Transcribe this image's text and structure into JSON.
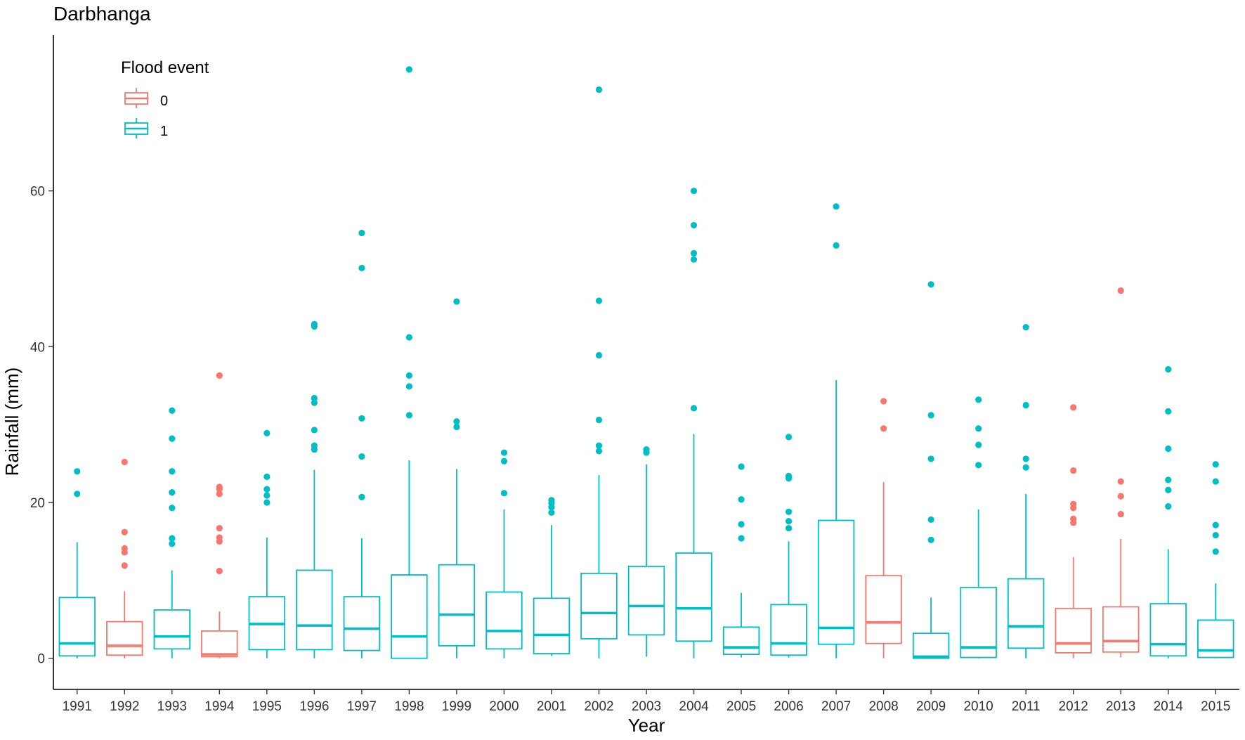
{
  "chart_data": {
    "type": "boxplot",
    "title": "Darbhanga",
    "xlabel": "Year",
    "ylabel": "Rainfall (mm)",
    "ylim": [
      -4,
      80
    ],
    "y_ticks": [
      0,
      20,
      40,
      60
    ],
    "grid": false,
    "legend": {
      "title": "Flood event",
      "placement": "top-left",
      "entries": [
        {
          "label": "0",
          "color": "#F8766D"
        },
        {
          "label": "1",
          "color": "#00BFC4"
        }
      ]
    },
    "colors": {
      "0": "#F8766D",
      "1": "#00BFC4"
    },
    "series": [
      {
        "year": "1991",
        "flood": "1",
        "lower": 0,
        "q1": 0.3,
        "median": 1.9,
        "q3": 7.8,
        "upper": 14.9,
        "outliers": [
          21.1,
          24.0
        ]
      },
      {
        "year": "1992",
        "flood": "0",
        "lower": 0,
        "q1": 0.4,
        "median": 1.6,
        "q3": 4.7,
        "upper": 8.6,
        "outliers": [
          11.9,
          13.6,
          14.1,
          16.2,
          25.2
        ]
      },
      {
        "year": "1993",
        "flood": "1",
        "lower": 0,
        "q1": 1.2,
        "median": 2.8,
        "q3": 6.2,
        "upper": 11.3,
        "outliers": [
          14.7,
          15.4,
          19.3,
          21.3,
          24.0,
          28.2,
          31.8
        ]
      },
      {
        "year": "1994",
        "flood": "0",
        "lower": 0,
        "q1": 0.2,
        "median": 0.5,
        "q3": 3.5,
        "upper": 6.0,
        "outliers": [
          11.2,
          15.0,
          15.5,
          16.7,
          21.1,
          21.7,
          22.0,
          36.3
        ]
      },
      {
        "year": "1995",
        "flood": "1",
        "lower": 0,
        "q1": 1.1,
        "median": 4.4,
        "q3": 7.9,
        "upper": 15.5,
        "outliers": [
          20.0,
          20.9,
          21.7,
          23.3,
          28.9
        ]
      },
      {
        "year": "1996",
        "flood": "1",
        "lower": 0,
        "q1": 1.1,
        "median": 4.2,
        "q3": 11.3,
        "upper": 24.2,
        "outliers": [
          26.8,
          27.3,
          29.3,
          32.8,
          33.4,
          42.6,
          42.9
        ]
      },
      {
        "year": "1997",
        "flood": "1",
        "lower": 0,
        "q1": 1.0,
        "median": 3.8,
        "q3": 7.9,
        "upper": 15.4,
        "outliers": [
          20.7,
          25.9,
          30.8,
          50.1,
          54.6
        ]
      },
      {
        "year": "1998",
        "flood": "1",
        "lower": 0,
        "q1": 0,
        "median": 2.8,
        "q3": 10.7,
        "upper": 25.4,
        "outliers": [
          31.2,
          34.9,
          36.3,
          41.2,
          75.6
        ]
      },
      {
        "year": "1999",
        "flood": "1",
        "lower": 0,
        "q1": 1.6,
        "median": 5.6,
        "q3": 12.0,
        "upper": 24.3,
        "outliers": [
          29.7,
          30.4,
          45.8
        ]
      },
      {
        "year": "2000",
        "flood": "1",
        "lower": 0,
        "q1": 1.2,
        "median": 3.5,
        "q3": 8.5,
        "upper": 19.1,
        "outliers": [
          21.2,
          25.3,
          26.4
        ]
      },
      {
        "year": "2001",
        "flood": "1",
        "lower": 0.3,
        "q1": 0.6,
        "median": 3.0,
        "q3": 7.7,
        "upper": 17.1,
        "outliers": [
          18.7,
          19.4,
          19.9,
          20.3
        ]
      },
      {
        "year": "2002",
        "flood": "1",
        "lower": 0,
        "q1": 2.5,
        "median": 5.8,
        "q3": 10.9,
        "upper": 23.5,
        "outliers": [
          26.6,
          27.3,
          30.6,
          38.9,
          45.9,
          73.0
        ]
      },
      {
        "year": "2003",
        "flood": "1",
        "lower": 0.2,
        "q1": 3.0,
        "median": 6.7,
        "q3": 11.8,
        "upper": 24.9,
        "outliers": [
          26.4,
          26.8
        ]
      },
      {
        "year": "2004",
        "flood": "1",
        "lower": 0,
        "q1": 2.2,
        "median": 6.4,
        "q3": 13.5,
        "upper": 28.8,
        "outliers": [
          32.1,
          51.2,
          52.0,
          55.6,
          60.0
        ]
      },
      {
        "year": "2005",
        "flood": "1",
        "lower": 0.1,
        "q1": 0.5,
        "median": 1.4,
        "q3": 4.0,
        "upper": 8.4,
        "outliers": [
          15.4,
          17.2,
          20.4,
          24.6
        ]
      },
      {
        "year": "2006",
        "flood": "1",
        "lower": 0.1,
        "q1": 0.4,
        "median": 1.9,
        "q3": 6.9,
        "upper": 15.0,
        "outliers": [
          16.7,
          17.6,
          18.8,
          23.1,
          23.4,
          28.4
        ]
      },
      {
        "year": "2007",
        "flood": "1",
        "lower": 0,
        "q1": 1.8,
        "median": 3.9,
        "q3": 17.7,
        "upper": 35.7,
        "outliers": [
          53.0,
          58.0
        ]
      },
      {
        "year": "2008",
        "flood": "0",
        "lower": 0,
        "q1": 1.9,
        "median": 4.6,
        "q3": 10.6,
        "upper": 22.6,
        "outliers": [
          29.5,
          33.0
        ]
      },
      {
        "year": "2009",
        "flood": "1",
        "lower": 0,
        "q1": 0,
        "median": 0.2,
        "q3": 3.2,
        "upper": 7.8,
        "outliers": [
          15.2,
          17.8,
          25.6,
          31.2,
          48.0
        ]
      },
      {
        "year": "2010",
        "flood": "1",
        "lower": 0,
        "q1": 0.1,
        "median": 1.4,
        "q3": 9.1,
        "upper": 19.1,
        "outliers": [
          24.8,
          27.4,
          29.5,
          33.2
        ]
      },
      {
        "year": "2011",
        "flood": "1",
        "lower": 0,
        "q1": 1.3,
        "median": 4.1,
        "q3": 10.2,
        "upper": 21.1,
        "outliers": [
          24.5,
          25.6,
          32.5,
          42.5
        ]
      },
      {
        "year": "2012",
        "flood": "0",
        "lower": 0,
        "q1": 0.7,
        "median": 1.9,
        "q3": 6.4,
        "upper": 13.0,
        "outliers": [
          17.4,
          17.9,
          19.3,
          19.8,
          24.1,
          32.2
        ]
      },
      {
        "year": "2013",
        "flood": "0",
        "lower": 0.1,
        "q1": 0.8,
        "median": 2.2,
        "q3": 6.6,
        "upper": 15.3,
        "outliers": [
          18.5,
          20.8,
          22.7,
          47.2
        ]
      },
      {
        "year": "2014",
        "flood": "1",
        "lower": 0,
        "q1": 0.3,
        "median": 1.8,
        "q3": 7.0,
        "upper": 14.0,
        "outliers": [
          19.5,
          21.6,
          22.9,
          26.9,
          31.7,
          37.1
        ]
      },
      {
        "year": "2015",
        "flood": "1",
        "lower": 0,
        "q1": 0.1,
        "median": 1.0,
        "q3": 4.9,
        "upper": 9.6,
        "outliers": [
          13.7,
          15.8,
          17.1,
          22.7,
          24.9
        ]
      }
    ]
  }
}
